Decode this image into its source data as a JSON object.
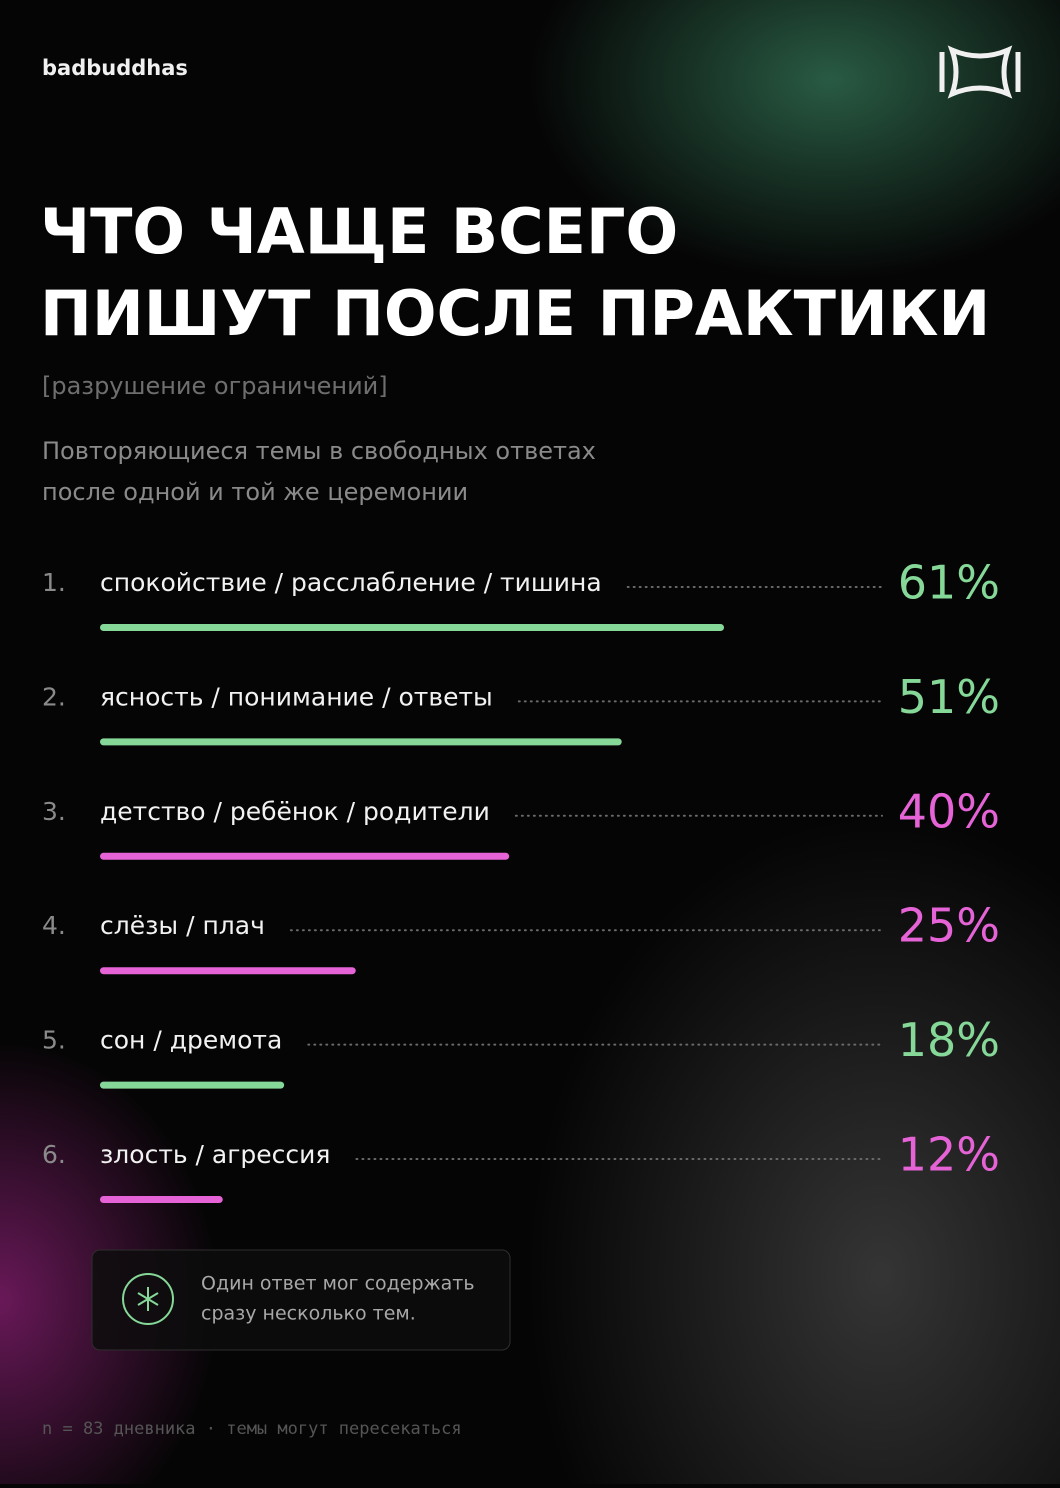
{
  "header": {
    "brand": "badbuddhas"
  },
  "chart_data": {
    "type": "bar",
    "orientation": "horizontal",
    "title": [
      "ЧТО ЧАЩЕ ВСЕГО",
      "ПИШУТ ПОСЛЕ ПРАКТИКИ"
    ],
    "subtitle": "[разрушение ограничений]",
    "description": [
      "Повторяющиеся темы в свободных ответах",
      "после одной и той же церемонии"
    ],
    "ranks": [
      "1.",
      "2.",
      "3.",
      "4.",
      "5.",
      "6."
    ],
    "categories": [
      "спокойствие / расслабление / тишина",
      "ясность / понимание / ответы",
      "детство / ребёнок / родители",
      "слёзы / плач",
      "сон / дремота",
      "злость / агрессия"
    ],
    "values": [
      61,
      51,
      40,
      25,
      18,
      12
    ],
    "value_labels": [
      "61%",
      "51%",
      "40%",
      "25%",
      "18%",
      "12%"
    ],
    "colors": [
      "#86d898",
      "#86d898",
      "#e563d6",
      "#e563d6",
      "#86d898",
      "#e563d6"
    ]
  },
  "note": [
    "Один ответ мог содержать",
    "сразу несколько тем."
  ],
  "footer": "n = 83 дневника · темы могут пересекаться"
}
